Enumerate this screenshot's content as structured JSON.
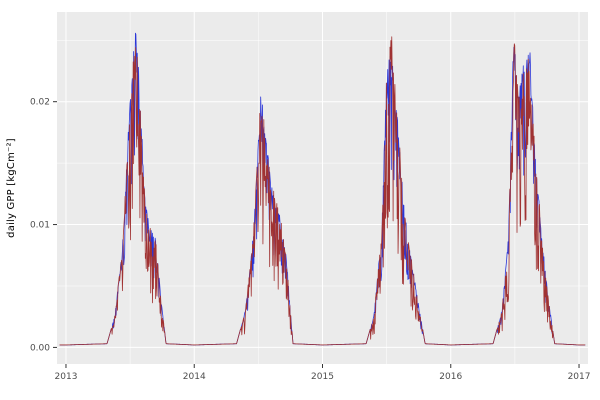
{
  "chart_data": {
    "type": "line",
    "title": "",
    "xlabel": "",
    "ylabel": "daily GPP [kgCm⁻²]",
    "x_tick_labels": [
      "2013",
      "2014",
      "2015",
      "2016",
      "2017"
    ],
    "x_ticks": [
      2013,
      2014,
      2015,
      2016,
      2017
    ],
    "x_minor_ticks": [
      2013.5,
      2014.5,
      2015.5,
      2016.5
    ],
    "y_tick_labels": [
      "0.00",
      "0.01",
      "0.02"
    ],
    "y_ticks": [
      0,
      0.01,
      0.02
    ],
    "y_minor_ticks": [
      0.005,
      0.015,
      0.025
    ],
    "xlim": [
      2012.93,
      2017.07
    ],
    "ylim": [
      -0.00135,
      0.0273
    ],
    "grid": true,
    "legend": "none",
    "baseline_value": 0.0002,
    "noise_threshold": 0.0015,
    "sample_step_years": 0.0035,
    "peak_values_by_year": {
      "2013": 0.026,
      "2014": 0.0205,
      "2015": 0.0245,
      "2016": 0.0248
    },
    "seasonal_envelope": {
      "2013": [
        [
          0,
          0.0002
        ],
        [
          0.32,
          0.0003
        ],
        [
          0.38,
          0.0025
        ],
        [
          0.44,
          0.008
        ],
        [
          0.5,
          0.02
        ],
        [
          0.54,
          0.026
        ],
        [
          0.57,
          0.022
        ],
        [
          0.61,
          0.013
        ],
        [
          0.65,
          0.0095
        ],
        [
          0.7,
          0.009
        ],
        [
          0.74,
          0.004
        ],
        [
          0.78,
          0.0003
        ],
        [
          1,
          0.0002
        ]
      ],
      "2014": [
        [
          0,
          0.0002
        ],
        [
          0.33,
          0.0003
        ],
        [
          0.4,
          0.003
        ],
        [
          0.46,
          0.009
        ],
        [
          0.52,
          0.0205
        ],
        [
          0.56,
          0.017
        ],
        [
          0.6,
          0.013
        ],
        [
          0.66,
          0.011
        ],
        [
          0.72,
          0.007
        ],
        [
          0.77,
          0.0003
        ],
        [
          1,
          0.0002
        ]
      ],
      "2015": [
        [
          0,
          0.0002
        ],
        [
          0.34,
          0.0003
        ],
        [
          0.4,
          0.0025
        ],
        [
          0.46,
          0.009
        ],
        [
          0.5,
          0.0225
        ],
        [
          0.54,
          0.0245
        ],
        [
          0.58,
          0.019
        ],
        [
          0.63,
          0.012
        ],
        [
          0.68,
          0.008
        ],
        [
          0.74,
          0.004
        ],
        [
          0.8,
          0.0003
        ],
        [
          1,
          0.0002
        ]
      ],
      "2016": [
        [
          0,
          0.0002
        ],
        [
          0.33,
          0.0003
        ],
        [
          0.4,
          0.003
        ],
        [
          0.45,
          0.009
        ],
        [
          0.49,
          0.0248
        ],
        [
          0.53,
          0.02
        ],
        [
          0.57,
          0.023
        ],
        [
          0.62,
          0.0235
        ],
        [
          0.66,
          0.015
        ],
        [
          0.71,
          0.009
        ],
        [
          0.76,
          0.004
        ],
        [
          0.81,
          0.0003
        ],
        [
          1,
          0.0002
        ]
      ]
    },
    "series": [
      {
        "name": "series-blue",
        "color": "#2a35d8",
        "noise_seed": 42,
        "dip_amp": 0.4,
        "dip_pow": 3.0,
        "jitter": 0.025
      },
      {
        "name": "series-red",
        "color": "#a03232",
        "noise_seed": 1337,
        "dip_amp": 0.62,
        "dip_pow": 2.2,
        "jitter": 0.04
      }
    ]
  },
  "layout_colors": {
    "panel_fill": "#EBEBEB",
    "grid_major": "#FFFFFF",
    "grid_minor": "#FFFFFF",
    "tick_mark": "#333333",
    "tick_label": "#4D4D4D",
    "axis_label": "#000000",
    "figure_background": "#FFFFFF"
  }
}
